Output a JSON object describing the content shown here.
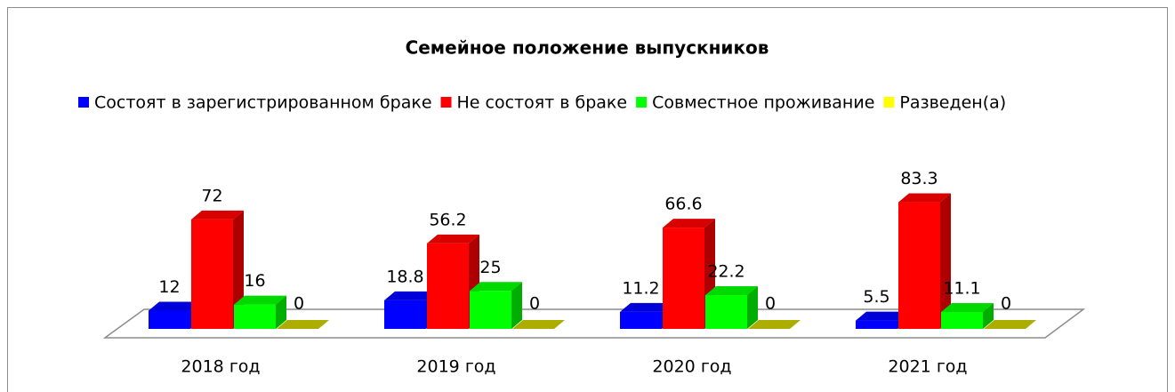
{
  "chart_data": {
    "type": "bar3d",
    "title": "Семейное положение выпускников",
    "categories": [
      "2018 год",
      "2019 год",
      "2020 год",
      "2021 год"
    ],
    "series": [
      {
        "name": "Состоят в зарегистрированном браке",
        "color": "#0000ff",
        "values": [
          12,
          18.8,
          11.2,
          5.5
        ]
      },
      {
        "name": "Не состоят в браке",
        "color": "#ff0000",
        "values": [
          72,
          56.2,
          66.6,
          83.3
        ]
      },
      {
        "name": "Совместное проживание",
        "color": "#00ff00",
        "values": [
          16,
          25,
          22.2,
          11.1
        ]
      },
      {
        "name": "Разведен(а)",
        "color": "#ffff00",
        "values": [
          0,
          0,
          0,
          0
        ]
      }
    ],
    "legend": "top"
  }
}
